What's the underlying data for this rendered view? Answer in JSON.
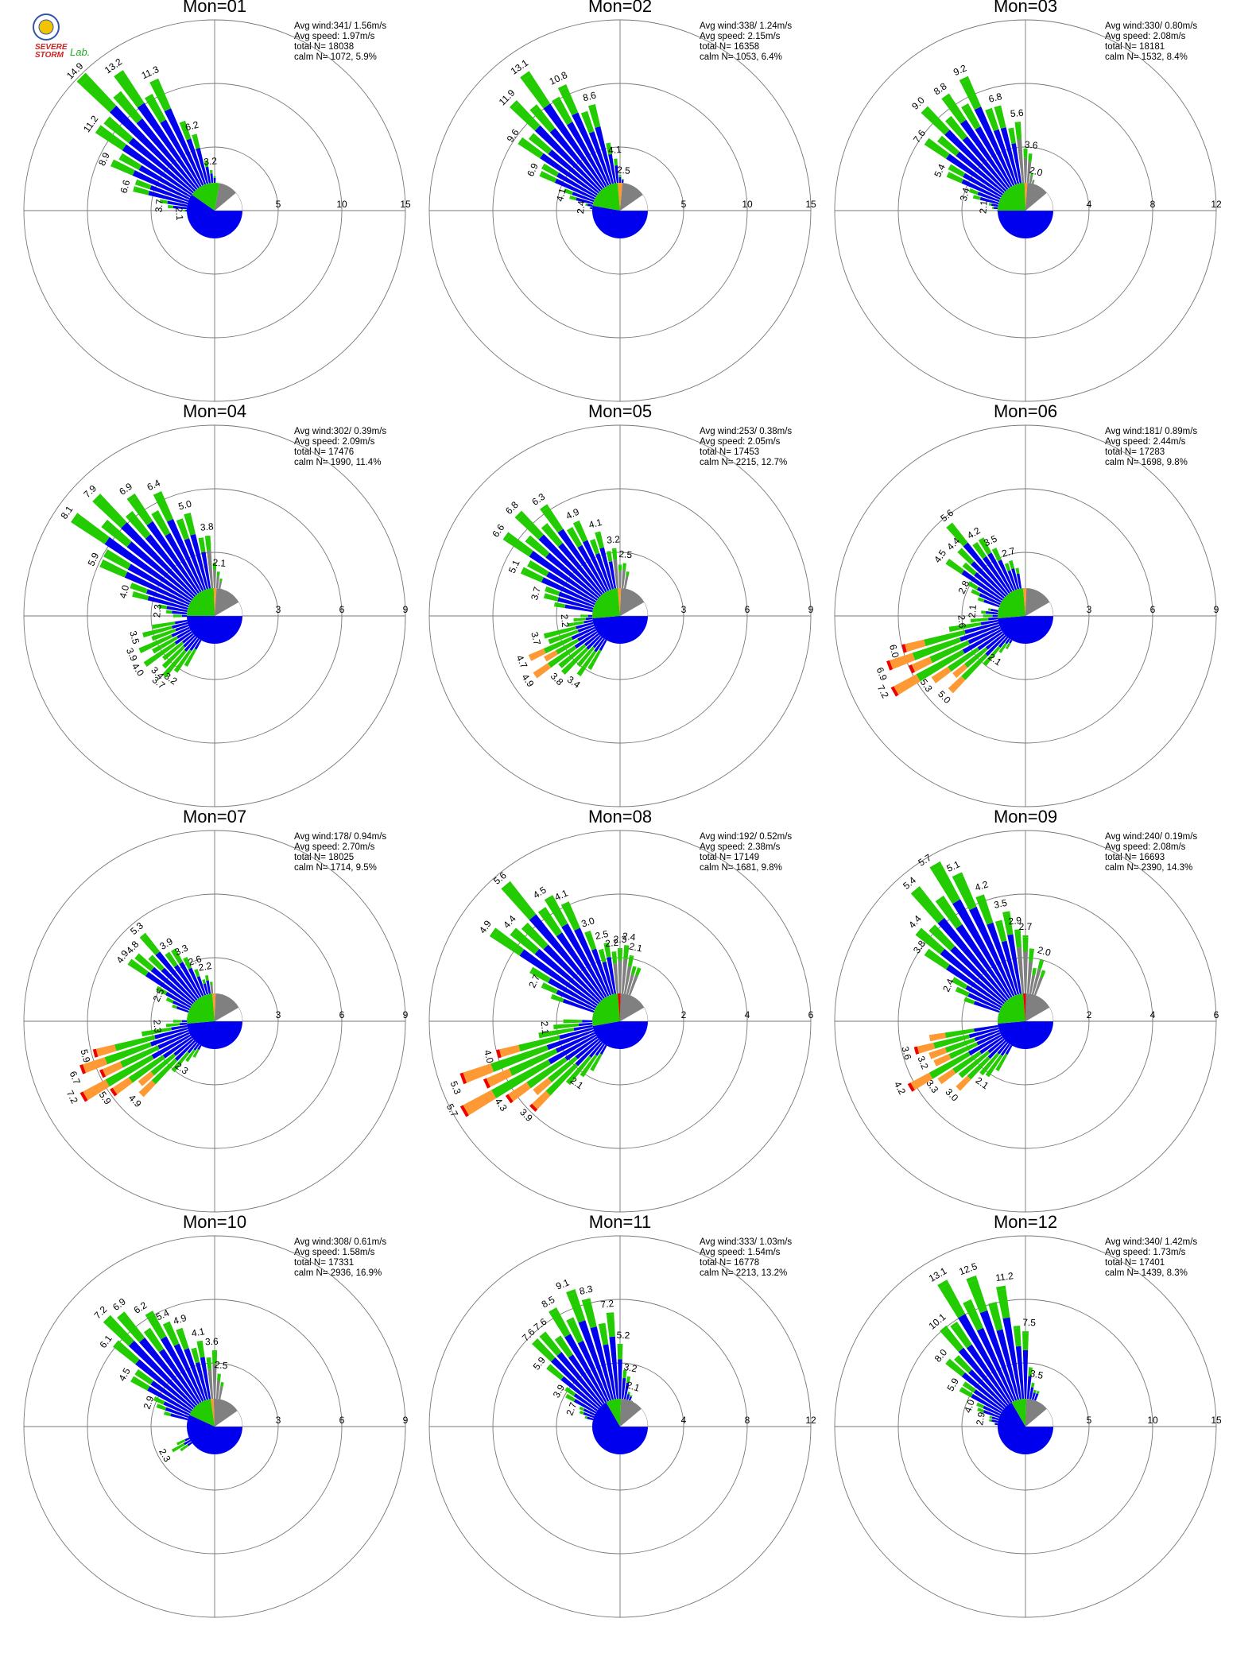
{
  "palette": {
    "blue": "#0000ee",
    "green": "#22cc00",
    "orange": "#ff9933",
    "red": "#ee0000",
    "purple": "#9900cc",
    "gray": "#808080",
    "grid": "#777777"
  },
  "logo": {
    "text_top": "SEVERE",
    "text_bottom": "STORM",
    "text_lab": "Lab."
  },
  "chart_data": [
    {
      "type": "polar-bar",
      "title": "Mon=01",
      "stats": [
        "Avg wind:341/ 1.56m/s",
        "Avg speed: 1.97m/s",
        "total N=      18038",
        "calm N=   1072,   5.9%"
      ],
      "rings": [
        5,
        10,
        15
      ],
      "ring_labels": [
        "5",
        "10",
        "15"
      ],
      "rmax": 15,
      "labeled": [
        [
          175,
          2.1
        ],
        [
          185,
          3.7
        ],
        [
          195,
          6.6
        ],
        [
          205,
          8.9
        ],
        [
          215,
          11.2
        ],
        [
          225,
          14.9
        ],
        [
          235,
          13.2
        ],
        [
          245,
          11.3
        ],
        [
          255,
          6.2
        ],
        [
          265,
          3.2
        ]
      ],
      "pie": [
        [
          "blue",
          0,
          215
        ],
        [
          "green",
          215,
          280
        ],
        [
          "gray",
          280,
          320
        ],
        [
          "white",
          320,
          360
        ]
      ],
      "skew": 0
    },
    {
      "type": "polar-bar",
      "title": "Mon=02",
      "stats": [
        "Avg wind:338/ 1.24m/s",
        "Avg speed: 2.15m/s",
        "total N=      16358",
        "calm N=   1053,   6.4%"
      ],
      "rings": [
        5,
        10,
        15
      ],
      "ring_labels": [
        "5",
        "10",
        "15"
      ],
      "rmax": 15,
      "labeled": [
        [
          185,
          2.4
        ],
        [
          195,
          4.1
        ],
        [
          205,
          6.9
        ],
        [
          215,
          9.6
        ],
        [
          225,
          11.9
        ],
        [
          235,
          13.1
        ],
        [
          245,
          10.8
        ],
        [
          255,
          8.6
        ],
        [
          265,
          4.1
        ],
        [
          275,
          2.5
        ]
      ],
      "pie": [
        [
          "blue",
          0,
          190
        ],
        [
          "green",
          190,
          265
        ],
        [
          "orange",
          265,
          275
        ],
        [
          "gray",
          275,
          325
        ],
        [
          "white",
          325,
          360
        ]
      ],
      "skew": 1
    },
    {
      "type": "polar-bar",
      "title": "Mon=03",
      "stats": [
        "Avg wind:330/ 0.80m/s",
        "Avg speed: 2.08m/s",
        "total N=      18181",
        "calm N=   1532,   8.4%"
      ],
      "rings": [
        4,
        8,
        12
      ],
      "ring_labels": [
        "4",
        "8",
        "12"
      ],
      "rmax": 12,
      "labeled": [
        [
          185,
          2.1
        ],
        [
          195,
          3.4
        ],
        [
          205,
          5.4
        ],
        [
          215,
          7.6
        ],
        [
          225,
          9.0
        ],
        [
          235,
          8.8
        ],
        [
          245,
          9.2
        ],
        [
          255,
          6.8
        ],
        [
          265,
          5.6
        ],
        [
          275,
          3.6
        ],
        [
          285,
          2.0
        ]
      ],
      "pie": [
        [
          "blue",
          0,
          180
        ],
        [
          "green",
          180,
          268
        ],
        [
          "orange",
          268,
          274
        ],
        [
          "gray",
          274,
          320
        ],
        [
          "white",
          320,
          360
        ]
      ],
      "skew": 1.6
    },
    {
      "type": "polar-bar",
      "title": "Mon=04",
      "stats": [
        "Avg wind:302/ 0.39m/s",
        "Avg speed: 2.09m/s",
        "total N=      17476",
        "calm N=   1990,  11.4%"
      ],
      "rings": [
        3,
        6,
        9
      ],
      "ring_labels": [
        "3",
        "6",
        "9"
      ],
      "rmax": 9,
      "labeled": [
        [
          185,
          2.3
        ],
        [
          195,
          4.0
        ],
        [
          205,
          5.9
        ],
        [
          215,
          8.1
        ],
        [
          225,
          7.9
        ],
        [
          235,
          6.9
        ],
        [
          245,
          6.4
        ],
        [
          255,
          5.0
        ],
        [
          265,
          3.8
        ],
        [
          275,
          2.1
        ],
        [
          125,
          3.2
        ],
        [
          130,
          3.7
        ],
        [
          135,
          3.4
        ],
        [
          145,
          4.0
        ],
        [
          155,
          3.9
        ],
        [
          165,
          3.5
        ]
      ],
      "pie": [
        [
          "blue",
          0,
          180
        ],
        [
          "green",
          180,
          268
        ],
        [
          "orange",
          268,
          274
        ],
        [
          "gray",
          274,
          330
        ],
        [
          "white",
          330,
          360
        ]
      ],
      "skew": 2.5
    },
    {
      "type": "polar-bar",
      "title": "Mon=05",
      "stats": [
        "Avg wind:253/ 0.38m/s",
        "Avg speed: 2.05m/s",
        "total N=      17453",
        "calm N=   2215,  12.7%"
      ],
      "rings": [
        3,
        6,
        9
      ],
      "ring_labels": [
        "3",
        "6",
        "9"
      ],
      "rmax": 9,
      "labeled": [
        [
          195,
          3.7
        ],
        [
          205,
          5.1
        ],
        [
          215,
          6.6
        ],
        [
          225,
          6.8
        ],
        [
          235,
          6.3
        ],
        [
          245,
          4.9
        ],
        [
          255,
          4.1
        ],
        [
          265,
          3.2
        ],
        [
          275,
          2.5
        ],
        [
          125,
          3.4
        ],
        [
          135,
          3.8
        ],
        [
          145,
          4.9
        ],
        [
          155,
          4.7
        ],
        [
          165,
          3.7
        ],
        [
          175,
          2.2
        ]
      ],
      "pie": [
        [
          "blue",
          0,
          175
        ],
        [
          "green",
          175,
          265
        ],
        [
          "orange",
          265,
          272
        ],
        [
          "gray",
          272,
          330
        ],
        [
          "white",
          330,
          360
        ]
      ],
      "skew": 2.8
    },
    {
      "type": "polar-bar",
      "title": "Mon=06",
      "stats": [
        "Avg wind:181/ 0.89m/s",
        "Avg speed: 2.44m/s",
        "total N=      17283",
        "calm N=   1698,   9.8%"
      ],
      "rings": [
        3,
        6,
        9
      ],
      "ring_labels": [
        "3",
        "6",
        "9"
      ],
      "rmax": 9,
      "labeled": [
        [
          205,
          2.8
        ],
        [
          215,
          4.5
        ],
        [
          225,
          4.4
        ],
        [
          232,
          5.6
        ],
        [
          238,
          4.2
        ],
        [
          245,
          3.5
        ],
        [
          255,
          2.7
        ],
        [
          125,
          2.1
        ],
        [
          135,
          5.0
        ],
        [
          145,
          5.3
        ],
        [
          152,
          7.2
        ],
        [
          158,
          6.9
        ],
        [
          165,
          6.0
        ],
        [
          175,
          2.6
        ],
        [
          185,
          2.1
        ]
      ],
      "pie": [
        [
          "blue",
          0,
          175
        ],
        [
          "green",
          175,
          265
        ],
        [
          "orange",
          265,
          272
        ],
        [
          "gray",
          272,
          330
        ],
        [
          "white",
          330,
          360
        ]
      ],
      "skew": 3.2
    },
    {
      "type": "polar-bar",
      "title": "Mon=07",
      "stats": [
        "Avg wind:178/ 0.94m/s",
        "Avg speed: 2.70m/s",
        "total N=      18025",
        "calm N=   1714,   9.5%"
      ],
      "rings": [
        3,
        6,
        9
      ],
      "ring_labels": [
        "3",
        "6",
        "9"
      ],
      "rmax": 9,
      "labeled": [
        [
          205,
          2.5
        ],
        [
          215,
          4.9
        ],
        [
          222,
          4.8
        ],
        [
          230,
          5.3
        ],
        [
          238,
          3.9
        ],
        [
          245,
          3.3
        ],
        [
          252,
          2.6
        ],
        [
          260,
          2.2
        ],
        [
          125,
          2.3
        ],
        [
          135,
          4.9
        ],
        [
          145,
          5.9
        ],
        [
          152,
          7.2
        ],
        [
          158,
          6.7
        ],
        [
          165,
          5.9
        ],
        [
          175,
          2.3
        ]
      ],
      "pie": [
        [
          "blue",
          0,
          175
        ],
        [
          "green",
          175,
          265
        ],
        [
          "orange",
          265,
          272
        ],
        [
          "gray",
          272,
          330
        ],
        [
          "white",
          330,
          360
        ]
      ],
      "skew": 3.4
    },
    {
      "type": "polar-bar",
      "title": "Mon=08",
      "stats": [
        "Avg wind:192/ 0.52m/s",
        "Avg speed: 2.38m/s",
        "total N=      17149",
        "calm N=   1681,   9.8%"
      ],
      "rings": [
        2,
        4,
        6
      ],
      "ring_labels": [
        "2",
        "4",
        "6"
      ],
      "rmax": 6,
      "labeled": [
        [
          205,
          2.7
        ],
        [
          215,
          4.9
        ],
        [
          222,
          4.4
        ],
        [
          230,
          5.6
        ],
        [
          238,
          4.5
        ],
        [
          245,
          4.1
        ],
        [
          252,
          3.0
        ],
        [
          258,
          2.5
        ],
        [
          264,
          2.2
        ],
        [
          270,
          2.3
        ],
        [
          276,
          2.4
        ],
        [
          282,
          2.1
        ],
        [
          125,
          2.1
        ],
        [
          135,
          3.9
        ],
        [
          145,
          4.3
        ],
        [
          152,
          5.7
        ],
        [
          158,
          5.3
        ],
        [
          165,
          4.0
        ],
        [
          175,
          2.1
        ]
      ],
      "pie": [
        [
          "blue",
          0,
          170
        ],
        [
          "green",
          170,
          265
        ],
        [
          "red",
          265,
          271
        ],
        [
          "gray",
          271,
          330
        ],
        [
          "white",
          330,
          360
        ]
      ],
      "skew": 3.0
    },
    {
      "type": "polar-bar",
      "title": "Mon=09",
      "stats": [
        "Avg wind:240/ 0.19m/s",
        "Avg speed: 2.08m/s",
        "total N=      16693",
        "calm N=   2390,  14.3%"
      ],
      "rings": [
        2,
        4,
        6
      ],
      "ring_labels": [
        "2",
        "4",
        "6"
      ],
      "rmax": 6,
      "labeled": [
        [
          205,
          2.4
        ],
        [
          215,
          3.8
        ],
        [
          222,
          4.4
        ],
        [
          230,
          5.4
        ],
        [
          238,
          5.7
        ],
        [
          245,
          5.1
        ],
        [
          252,
          4.2
        ],
        [
          258,
          3.5
        ],
        [
          264,
          2.9
        ],
        [
          270,
          2.7
        ],
        [
          285,
          2.0
        ],
        [
          125,
          2.1
        ],
        [
          135,
          3.0
        ],
        [
          145,
          3.3
        ],
        [
          152,
          4.2
        ],
        [
          158,
          3.2
        ],
        [
          165,
          3.6
        ]
      ],
      "pie": [
        [
          "blue",
          0,
          175
        ],
        [
          "green",
          175,
          265
        ],
        [
          "red",
          265,
          271
        ],
        [
          "gray",
          271,
          330
        ],
        [
          "white",
          330,
          360
        ]
      ],
      "skew": 2.6
    },
    {
      "type": "polar-bar",
      "title": "Mon=10",
      "stats": [
        "Avg wind:308/ 0.61m/s",
        "Avg speed: 1.58m/s",
        "total N=      17331",
        "calm N=   2936,  16.9%"
      ],
      "rings": [
        3,
        6,
        9
      ],
      "ring_labels": [
        "3",
        "6",
        "9"
      ],
      "rmax": 9,
      "labeled": [
        [
          200,
          2.9
        ],
        [
          210,
          4.5
        ],
        [
          218,
          6.1
        ],
        [
          225,
          7.2
        ],
        [
          232,
          6.9
        ],
        [
          238,
          6.2
        ],
        [
          245,
          5.4
        ],
        [
          252,
          4.9
        ],
        [
          260,
          4.1
        ],
        [
          268,
          3.6
        ],
        [
          276,
          2.5
        ],
        [
          150,
          2.3
        ]
      ],
      "pie": [
        [
          "blue",
          0,
          205
        ],
        [
          "green",
          205,
          262
        ],
        [
          "orange",
          262,
          268
        ],
        [
          "gray",
          268,
          325
        ],
        [
          "white",
          325,
          360
        ]
      ],
      "skew": 1.2
    },
    {
      "type": "polar-bar",
      "title": "Mon=11",
      "stats": [
        "Avg wind:333/ 1.03m/s",
        "Avg speed: 1.54m/s",
        "total N=      16778",
        "calm N=   2213,  13.2%"
      ],
      "rings": [
        4,
        8,
        12
      ],
      "ring_labels": [
        "4",
        "8",
        "12"
      ],
      "rmax": 12,
      "labeled": [
        [
          200,
          2.7
        ],
        [
          210,
          3.9
        ],
        [
          218,
          5.9
        ],
        [
          225,
          7.6
        ],
        [
          232,
          7.6
        ],
        [
          240,
          8.5
        ],
        [
          248,
          9.1
        ],
        [
          256,
          8.3
        ],
        [
          264,
          7.2
        ],
        [
          272,
          5.2
        ],
        [
          280,
          3.2
        ],
        [
          288,
          2.1
        ]
      ],
      "pie": [
        [
          "blue",
          0,
          240
        ],
        [
          "green",
          240,
          272
        ],
        [
          "gray",
          272,
          320
        ],
        [
          "white",
          320,
          360
        ]
      ],
      "skew": 0
    },
    {
      "type": "polar-bar",
      "title": "Mon=12",
      "stats": [
        "Avg wind:340/ 1.42m/s",
        "Avg speed: 1.73m/s",
        "total N=      17401",
        "calm N=   1439,   8.3%"
      ],
      "rings": [
        5,
        10,
        15
      ],
      "ring_labels": [
        "5",
        "10",
        "15"
      ],
      "rmax": 15,
      "labeled": [
        [
          190,
          2.9
        ],
        [
          200,
          4.0
        ],
        [
          210,
          5.9
        ],
        [
          220,
          8.0
        ],
        [
          230,
          10.1
        ],
        [
          240,
          13.1
        ],
        [
          250,
          12.5
        ],
        [
          262,
          11.2
        ],
        [
          272,
          7.5
        ],
        [
          282,
          3.5
        ]
      ],
      "pie": [
        [
          "blue",
          0,
          240
        ],
        [
          "green",
          240,
          272
        ],
        [
          "gray",
          272,
          320
        ],
        [
          "white",
          320,
          360
        ]
      ],
      "skew": 0
    }
  ]
}
